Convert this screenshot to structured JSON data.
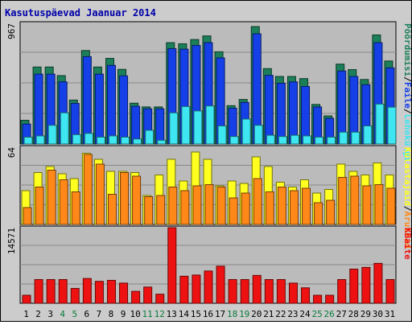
{
  "chart_data": {
    "type": "bar",
    "title": "Kasutuspäevad Jaanuar 2014",
    "categories": [
      "1",
      "2",
      "3",
      "4",
      "5",
      "6",
      "7",
      "8",
      "9",
      "10",
      "11",
      "12",
      "13",
      "14",
      "15",
      "16",
      "17",
      "18",
      "19",
      "20",
      "21",
      "22",
      "23",
      "24",
      "25",
      "26",
      "27",
      "28",
      "29",
      "30",
      "31"
    ],
    "weekend_days": [
      "4",
      "5",
      "11",
      "12",
      "18",
      "19",
      "25",
      "26"
    ],
    "panels": [
      {
        "id": "top",
        "max_label": "967",
        "ylim": [
          0,
          967
        ],
        "legend": [
          "Pöördumisi",
          "Faile",
          "Lehekülgi"
        ],
        "series": [
          {
            "name": "Pöördumisi",
            "color": "#1b7f59",
            "values": [
              190,
              617,
              617,
              548,
              352,
              749,
              617,
              686,
              598,
              327,
              297,
              297,
              812,
              803,
              837,
              866,
              739,
              307,
              357,
              941,
              604,
              541,
              541,
              524,
              317,
              225,
              640,
              596,
              517,
              874,
              665
            ]
          },
          {
            "name": "Faile",
            "color": "#1540e8",
            "values": [
              160,
              560,
              560,
              498,
              325,
              700,
              560,
              630,
              546,
              302,
              282,
              282,
              764,
              760,
              790,
              812,
              690,
              287,
              333,
              883,
              550,
              487,
              498,
              461,
              297,
              206,
              585,
              541,
              475,
              812,
              610
            ]
          },
          {
            "name": "Lehekülgi",
            "color": "#3de6f0",
            "values": [
              55,
              65,
              150,
              250,
              75,
              85,
              55,
              65,
              55,
              40,
              110,
              30,
              250,
              300,
              265,
              305,
              145,
              60,
              200,
              150,
              70,
              60,
              70,
              65,
              55,
              55,
              95,
              95,
              145,
              320,
              295
            ]
          }
        ]
      },
      {
        "id": "middle",
        "max_label": "64",
        "ylim": [
          0,
          64
        ],
        "legend": [
          "Külastajaid",
          "Aruteid"
        ],
        "series": [
          {
            "name": "Külastajaid",
            "color": "#ffff20",
            "values": [
              28,
              43,
              48,
              42,
              38,
              59,
              54,
              44,
              44,
              43,
              24,
              41,
              54,
              36,
              60,
              54,
              32,
              36,
              34,
              56,
              48,
              35,
              31,
              37,
              26,
              29,
              50,
              44,
              41,
              51,
              41
            ]
          },
          {
            "name": "Aruteid",
            "color": "#ff8818",
            "values": [
              14,
              31,
              45,
              37,
              27,
              58,
              50,
              25,
              43,
              40,
              23,
              24,
              31,
              28,
              32,
              33,
              31,
              22,
              26,
              38,
              27,
              31,
              28,
              30,
              18,
              20,
              39,
              40,
              32,
              33,
              30
            ]
          }
        ]
      },
      {
        "id": "bottom",
        "max_label": "14571",
        "ylim": [
          0,
          14571
        ],
        "legend": [
          "KBaite"
        ],
        "series": [
          {
            "name": "KBaite",
            "color": "#ee1111",
            "values": [
              1545,
              4570,
              4570,
              4570,
              2860,
              4775,
              4230,
              4420,
              3890,
              2300,
              3125,
              1750,
              14571,
              5215,
              5440,
              6220,
              7150,
              4570,
              4570,
              5370,
              4570,
              4570,
              3890,
              2980,
              1545,
              1545,
              4570,
              6590,
              6910,
              7690,
              4570
            ]
          }
        ]
      }
    ]
  }
}
